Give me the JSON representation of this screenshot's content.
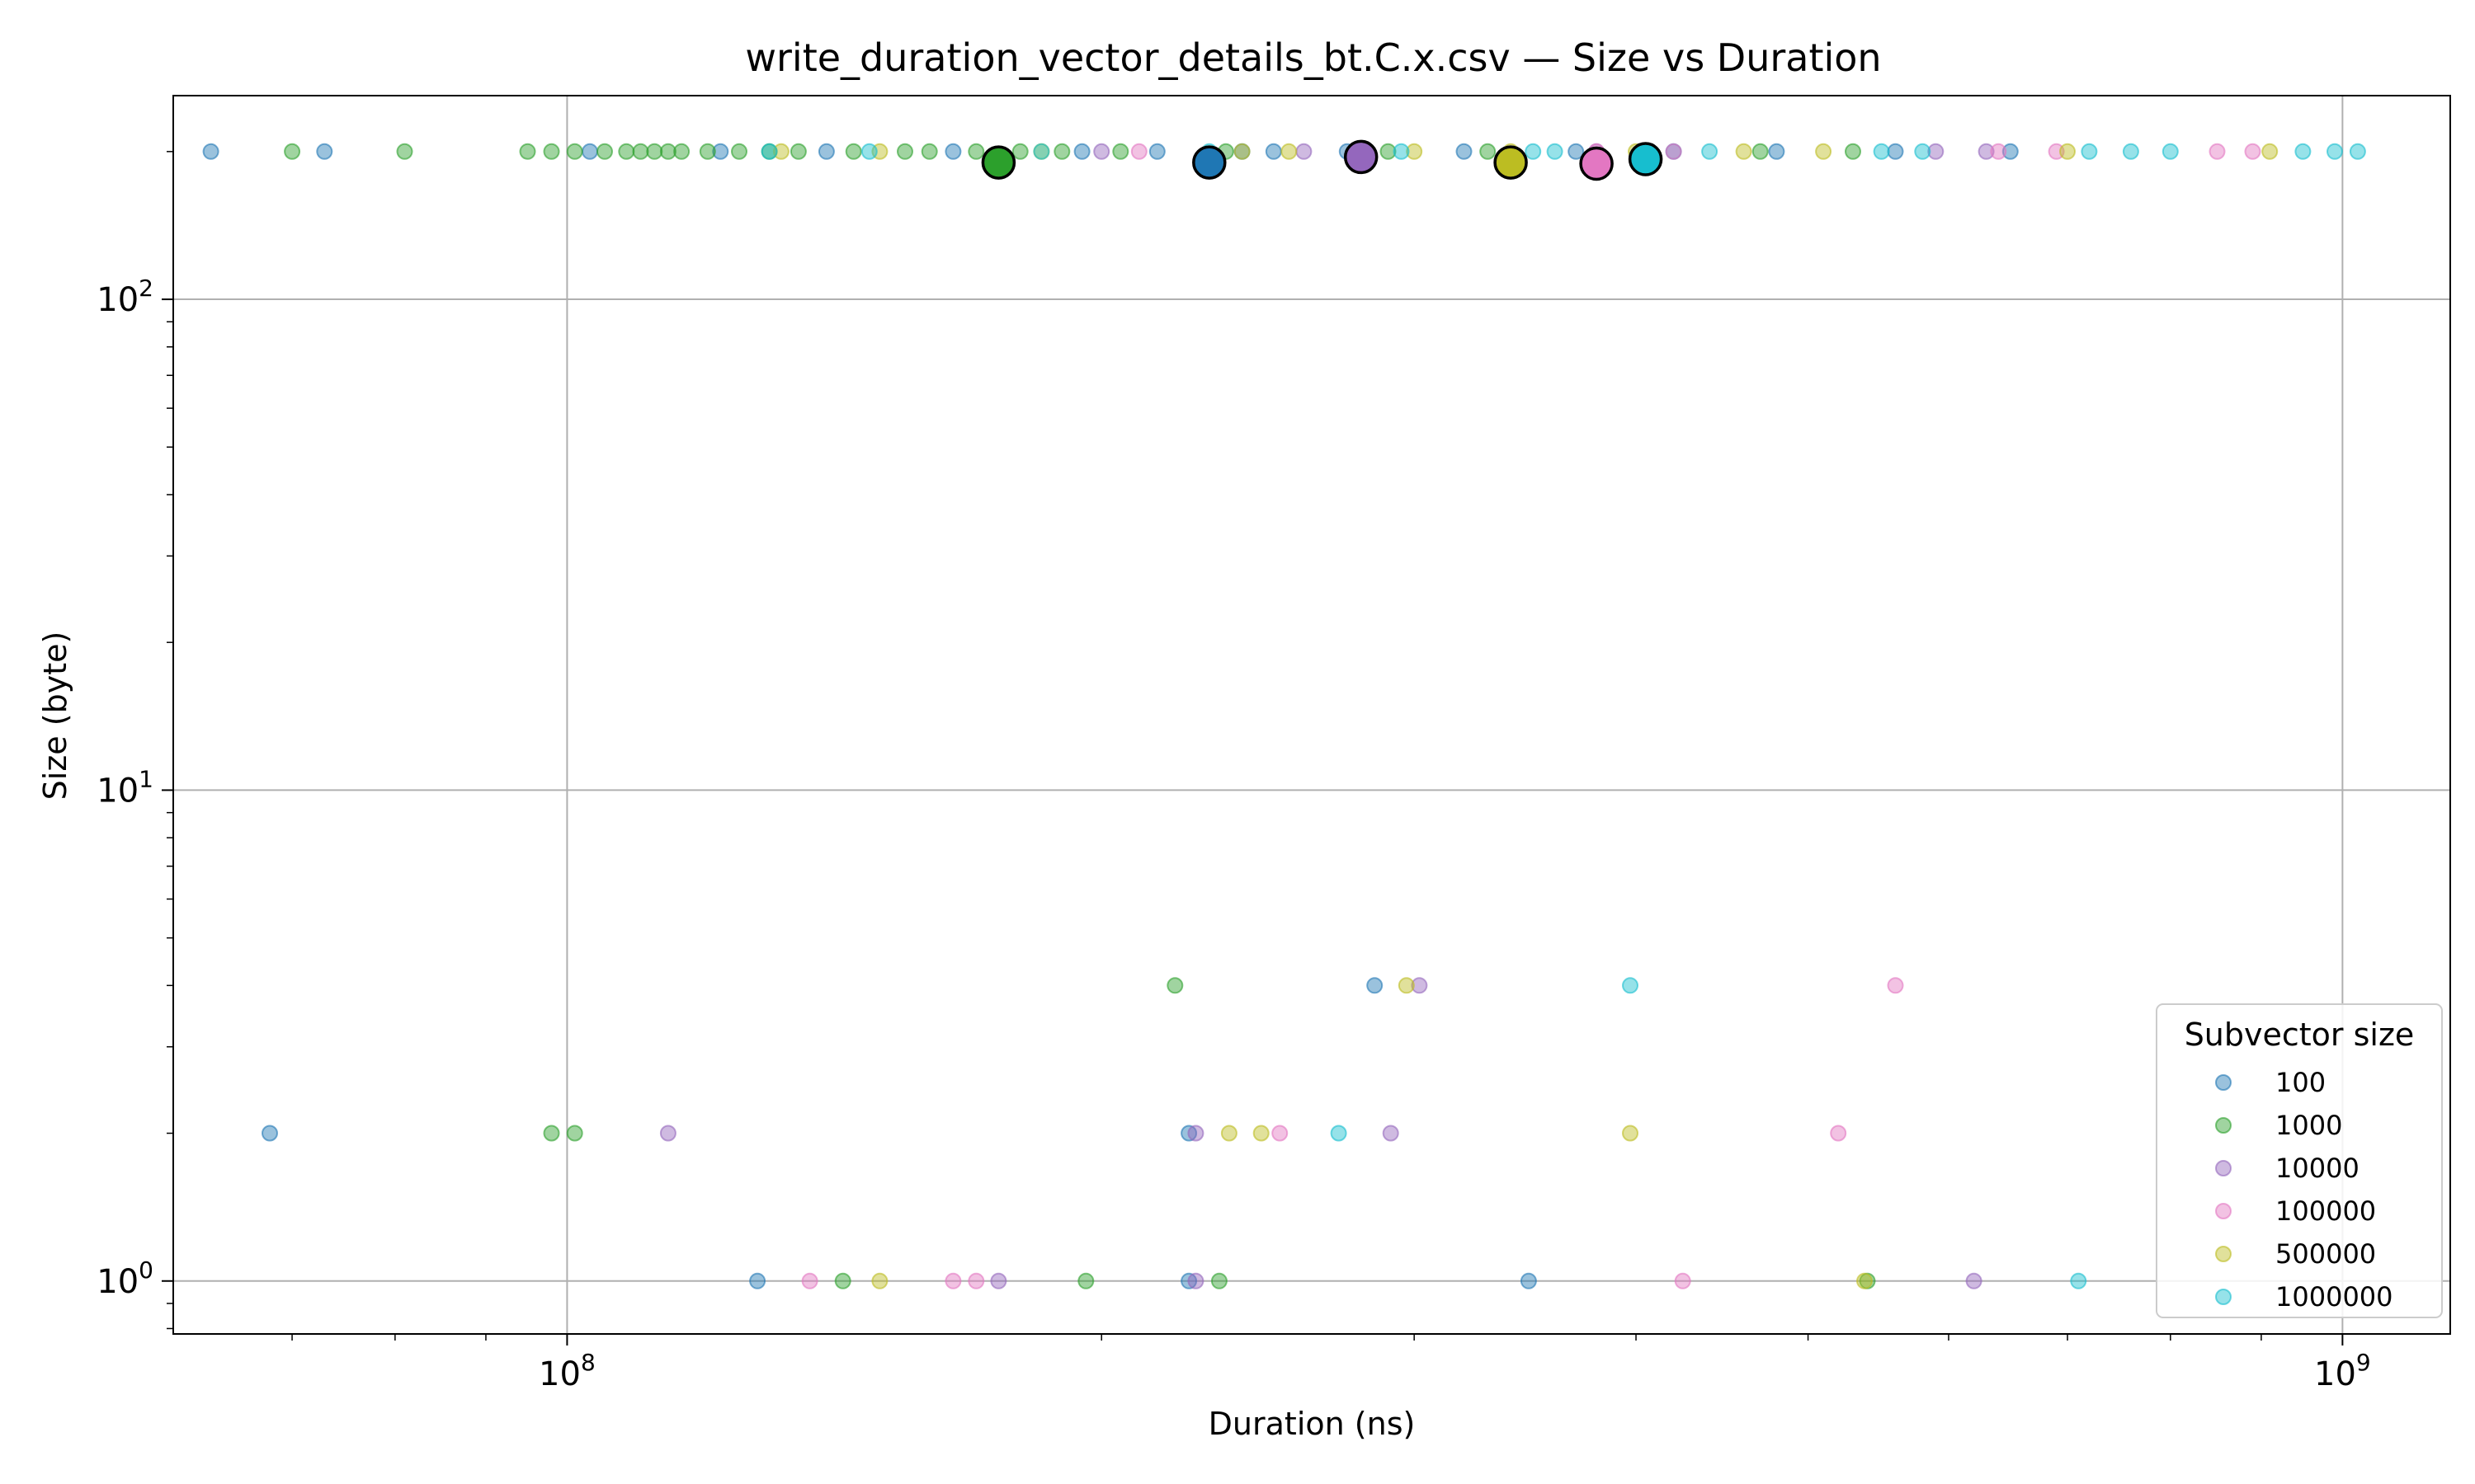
{
  "chart_data": {
    "type": "scatter",
    "title": "write_duration_vector_details_bt.C.x.csv — Size vs Duration",
    "xlabel": "Duration (ns)",
    "ylabel": "Size (byte)",
    "xscale": "log",
    "yscale": "log",
    "xlim": [
      60000000,
      1150000000
    ],
    "ylim": [
      0.78,
      260
    ],
    "x_ticks": [
      {
        "value": 100000000,
        "base": "10",
        "exp": "8"
      },
      {
        "value": 1000000000,
        "base": "10",
        "exp": "9"
      }
    ],
    "y_ticks": [
      {
        "value": 1,
        "base": "10",
        "exp": "0"
      },
      {
        "value": 10,
        "base": "10",
        "exp": "1"
      },
      {
        "value": 100,
        "base": "10",
        "exp": "2"
      }
    ],
    "grid": true,
    "legend": {
      "title": "Subvector size",
      "position": "bottom-right"
    },
    "series": [
      {
        "name": "100",
        "color": "#1f77b4",
        "mean": {
          "x": 230000000,
          "y": 190
        },
        "points": [
          {
            "x": 63000000,
            "y": 200
          },
          {
            "x": 73000000,
            "y": 200
          },
          {
            "x": 103000000,
            "y": 200
          },
          {
            "x": 122000000,
            "y": 200
          },
          {
            "x": 140000000,
            "y": 200
          },
          {
            "x": 165000000,
            "y": 200
          },
          {
            "x": 195000000,
            "y": 200
          },
          {
            "x": 215000000,
            "y": 200
          },
          {
            "x": 240000000,
            "y": 200
          },
          {
            "x": 250000000,
            "y": 200
          },
          {
            "x": 275000000,
            "y": 200
          },
          {
            "x": 320000000,
            "y": 200
          },
          {
            "x": 370000000,
            "y": 200
          },
          {
            "x": 420000000,
            "y": 200
          },
          {
            "x": 480000000,
            "y": 200
          },
          {
            "x": 560000000,
            "y": 200
          },
          {
            "x": 650000000,
            "y": 200
          },
          {
            "x": 285000000,
            "y": 4
          },
          {
            "x": 68000000,
            "y": 2
          },
          {
            "x": 224000000,
            "y": 2
          },
          {
            "x": 128000000,
            "y": 1
          },
          {
            "x": 224000000,
            "y": 1
          },
          {
            "x": 348000000,
            "y": 1
          }
        ]
      },
      {
        "name": "1000",
        "color": "#2ca02c",
        "mean": {
          "x": 175000000,
          "y": 190
        },
        "points": [
          {
            "x": 70000000,
            "y": 200
          },
          {
            "x": 81000000,
            "y": 200
          },
          {
            "x": 95000000,
            "y": 200
          },
          {
            "x": 98000000,
            "y": 200
          },
          {
            "x": 101000000,
            "y": 200
          },
          {
            "x": 105000000,
            "y": 200
          },
          {
            "x": 108000000,
            "y": 200
          },
          {
            "x": 110000000,
            "y": 200
          },
          {
            "x": 112000000,
            "y": 200
          },
          {
            "x": 114000000,
            "y": 200
          },
          {
            "x": 116000000,
            "y": 200
          },
          {
            "x": 120000000,
            "y": 200
          },
          {
            "x": 125000000,
            "y": 200
          },
          {
            "x": 130000000,
            "y": 200
          },
          {
            "x": 135000000,
            "y": 200
          },
          {
            "x": 145000000,
            "y": 200
          },
          {
            "x": 155000000,
            "y": 200
          },
          {
            "x": 160000000,
            "y": 200
          },
          {
            "x": 170000000,
            "y": 200
          },
          {
            "x": 180000000,
            "y": 200
          },
          {
            "x": 190000000,
            "y": 200
          },
          {
            "x": 205000000,
            "y": 200
          },
          {
            "x": 235000000,
            "y": 200
          },
          {
            "x": 290000000,
            "y": 200
          },
          {
            "x": 330000000,
            "y": 200
          },
          {
            "x": 470000000,
            "y": 200
          },
          {
            "x": 530000000,
            "y": 200
          },
          {
            "x": 220000000,
            "y": 4
          },
          {
            "x": 98000000,
            "y": 2
          },
          {
            "x": 101000000,
            "y": 2
          },
          {
            "x": 143000000,
            "y": 1
          },
          {
            "x": 196000000,
            "y": 1
          },
          {
            "x": 233000000,
            "y": 1
          },
          {
            "x": 540000000,
            "y": 1
          }
        ]
      },
      {
        "name": "10000",
        "color": "#9467bd",
        "mean": {
          "x": 280000000,
          "y": 195
        },
        "points": [
          {
            "x": 200000000,
            "y": 200
          },
          {
            "x": 260000000,
            "y": 200
          },
          {
            "x": 380000000,
            "y": 200
          },
          {
            "x": 590000000,
            "y": 200
          },
          {
            "x": 630000000,
            "y": 200
          },
          {
            "x": 302000000,
            "y": 4
          },
          {
            "x": 114000000,
            "y": 2
          },
          {
            "x": 226000000,
            "y": 2
          },
          {
            "x": 291000000,
            "y": 2
          },
          {
            "x": 175000000,
            "y": 1
          },
          {
            "x": 226000000,
            "y": 1
          },
          {
            "x": 620000000,
            "y": 1
          }
        ]
      },
      {
        "name": "100000",
        "color": "#e377c2",
        "mean": {
          "x": 380000000,
          "y": 189
        },
        "points": [
          {
            "x": 210000000,
            "y": 200
          },
          {
            "x": 380000000,
            "y": 200
          },
          {
            "x": 420000000,
            "y": 200
          },
          {
            "x": 640000000,
            "y": 200
          },
          {
            "x": 690000000,
            "y": 200
          },
          {
            "x": 850000000,
            "y": 200
          },
          {
            "x": 890000000,
            "y": 200
          },
          {
            "x": 560000000,
            "y": 4
          },
          {
            "x": 252000000,
            "y": 2
          },
          {
            "x": 520000000,
            "y": 2
          },
          {
            "x": 137000000,
            "y": 1
          },
          {
            "x": 165000000,
            "y": 1
          },
          {
            "x": 170000000,
            "y": 1
          },
          {
            "x": 425000000,
            "y": 1
          }
        ]
      },
      {
        "name": "500000",
        "color": "#bcbd22",
        "mean": {
          "x": 340000000,
          "y": 190
        },
        "points": [
          {
            "x": 132000000,
            "y": 200
          },
          {
            "x": 150000000,
            "y": 200
          },
          {
            "x": 185000000,
            "y": 200
          },
          {
            "x": 240000000,
            "y": 200
          },
          {
            "x": 255000000,
            "y": 200
          },
          {
            "x": 300000000,
            "y": 200
          },
          {
            "x": 340000000,
            "y": 200
          },
          {
            "x": 400000000,
            "y": 200
          },
          {
            "x": 460000000,
            "y": 200
          },
          {
            "x": 510000000,
            "y": 200
          },
          {
            "x": 700000000,
            "y": 200
          },
          {
            "x": 910000000,
            "y": 200
          },
          {
            "x": 297000000,
            "y": 4
          },
          {
            "x": 236000000,
            "y": 2
          },
          {
            "x": 246000000,
            "y": 2
          },
          {
            "x": 397000000,
            "y": 2
          },
          {
            "x": 150000000,
            "y": 1
          },
          {
            "x": 538000000,
            "y": 1
          }
        ]
      },
      {
        "name": "1000000",
        "color": "#17becf",
        "mean": {
          "x": 405000000,
          "y": 193
        },
        "points": [
          {
            "x": 130000000,
            "y": 200
          },
          {
            "x": 148000000,
            "y": 200
          },
          {
            "x": 185000000,
            "y": 200
          },
          {
            "x": 230000000,
            "y": 200
          },
          {
            "x": 295000000,
            "y": 200
          },
          {
            "x": 350000000,
            "y": 200
          },
          {
            "x": 360000000,
            "y": 200
          },
          {
            "x": 440000000,
            "y": 200
          },
          {
            "x": 550000000,
            "y": 200
          },
          {
            "x": 580000000,
            "y": 200
          },
          {
            "x": 720000000,
            "y": 200
          },
          {
            "x": 760000000,
            "y": 200
          },
          {
            "x": 800000000,
            "y": 200
          },
          {
            "x": 950000000,
            "y": 200
          },
          {
            "x": 990000000,
            "y": 200
          },
          {
            "x": 1020000000,
            "y": 200
          },
          {
            "x": 397000000,
            "y": 4
          },
          {
            "x": 272000000,
            "y": 2
          },
          {
            "x": 710000000,
            "y": 1
          }
        ]
      }
    ]
  }
}
